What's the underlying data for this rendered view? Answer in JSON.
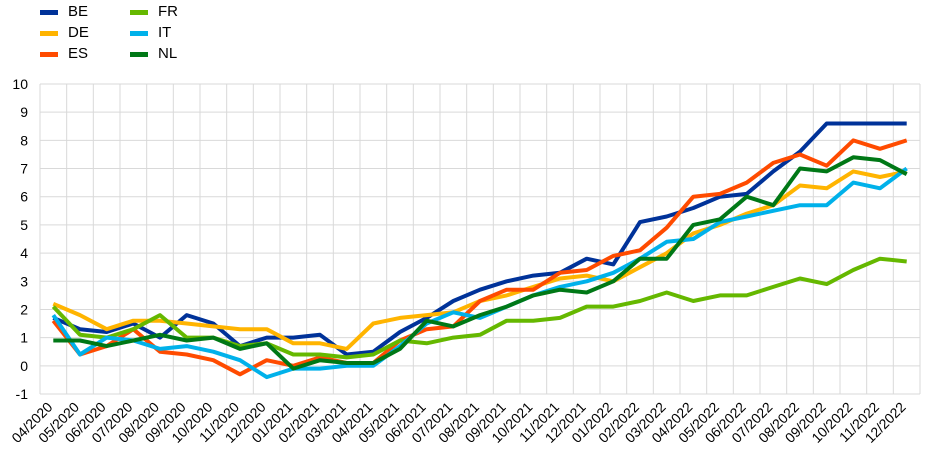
{
  "chart_data": {
    "type": "line",
    "title": "",
    "xlabel": "",
    "ylabel": "",
    "ylim": [
      -1,
      10
    ],
    "yticks": [
      -1,
      0,
      1,
      2,
      3,
      4,
      5,
      6,
      7,
      8,
      9,
      10
    ],
    "grid": true,
    "legend_position": "top-left",
    "categories": [
      "04/2020",
      "05/2020",
      "06/2020",
      "07/2020",
      "08/2020",
      "09/2020",
      "10/2020",
      "11/2020",
      "12/2020",
      "01/2021",
      "02/2021",
      "03/2021",
      "04/2021",
      "05/2021",
      "06/2021",
      "07/2021",
      "08/2021",
      "09/2021",
      "10/2021",
      "11/2021",
      "12/2021",
      "01/2022",
      "02/2022",
      "03/2022",
      "04/2022",
      "05/2022",
      "06/2022",
      "07/2022",
      "08/2022",
      "09/2022",
      "10/2022",
      "11/2022",
      "12/2022"
    ],
    "series": [
      {
        "name": "BE",
        "color": "#003299",
        "values": [
          1.7,
          1.3,
          1.2,
          1.5,
          1.0,
          1.8,
          1.5,
          0.7,
          1.0,
          1.0,
          1.1,
          0.4,
          0.5,
          1.2,
          1.7,
          2.3,
          2.7,
          3.0,
          3.2,
          3.3,
          3.8,
          3.6,
          5.1,
          5.3,
          5.6,
          6.0,
          6.1,
          6.9,
          7.6,
          8.6,
          8.6,
          8.6,
          8.6
        ]
      },
      {
        "name": "DE",
        "color": "#FFB400",
        "values": [
          2.2,
          1.8,
          1.3,
          1.6,
          1.6,
          1.5,
          1.4,
          1.3,
          1.3,
          0.8,
          0.8,
          0.6,
          1.5,
          1.7,
          1.8,
          1.9,
          2.3,
          2.5,
          2.8,
          3.1,
          3.2,
          3.0,
          3.5,
          4.0,
          4.7,
          5.0,
          5.4,
          5.7,
          6.4,
          6.3,
          6.9,
          6.7,
          6.9
        ]
      },
      {
        "name": "ES",
        "color": "#FF4B00",
        "values": [
          1.6,
          0.4,
          0.7,
          1.3,
          0.5,
          0.4,
          0.2,
          -0.3,
          0.2,
          0.0,
          0.3,
          0.1,
          0.1,
          0.9,
          1.3,
          1.4,
          2.3,
          2.7,
          2.7,
          3.3,
          3.4,
          3.9,
          4.1,
          4.9,
          6.0,
          6.1,
          6.5,
          7.2,
          7.5,
          7.1,
          8.0,
          7.7,
          8.0
        ]
      },
      {
        "name": "FR",
        "color": "#65B800",
        "values": [
          2.1,
          1.1,
          1.0,
          1.3,
          1.8,
          1.0,
          1.0,
          0.7,
          0.8,
          0.4,
          0.4,
          0.3,
          0.4,
          0.9,
          0.8,
          1.0,
          1.1,
          1.6,
          1.6,
          1.7,
          2.1,
          2.1,
          2.3,
          2.6,
          2.3,
          2.5,
          2.5,
          2.8,
          3.1,
          2.9,
          3.4,
          3.8,
          3.7
        ]
      },
      {
        "name": "IT",
        "color": "#00B1EA",
        "values": [
          1.8,
          0.4,
          1.0,
          0.9,
          0.6,
          0.7,
          0.5,
          0.2,
          -0.4,
          -0.1,
          -0.1,
          0.0,
          0.0,
          0.7,
          1.5,
          1.9,
          1.7,
          2.1,
          2.5,
          2.8,
          3.0,
          3.3,
          3.8,
          4.4,
          4.5,
          5.1,
          5.3,
          5.5,
          5.7,
          5.7,
          6.5,
          6.3,
          7.0
        ]
      },
      {
        "name": "NL",
        "color": "#007816",
        "values": [
          0.9,
          0.9,
          0.7,
          0.9,
          1.1,
          0.9,
          1.0,
          0.6,
          0.8,
          -0.1,
          0.2,
          0.1,
          0.1,
          0.6,
          1.6,
          1.4,
          1.8,
          2.1,
          2.5,
          2.7,
          2.6,
          3.0,
          3.8,
          3.8,
          5.0,
          5.2,
          6.0,
          5.7,
          7.0,
          6.9,
          7.4,
          7.3,
          6.8
        ]
      }
    ]
  }
}
